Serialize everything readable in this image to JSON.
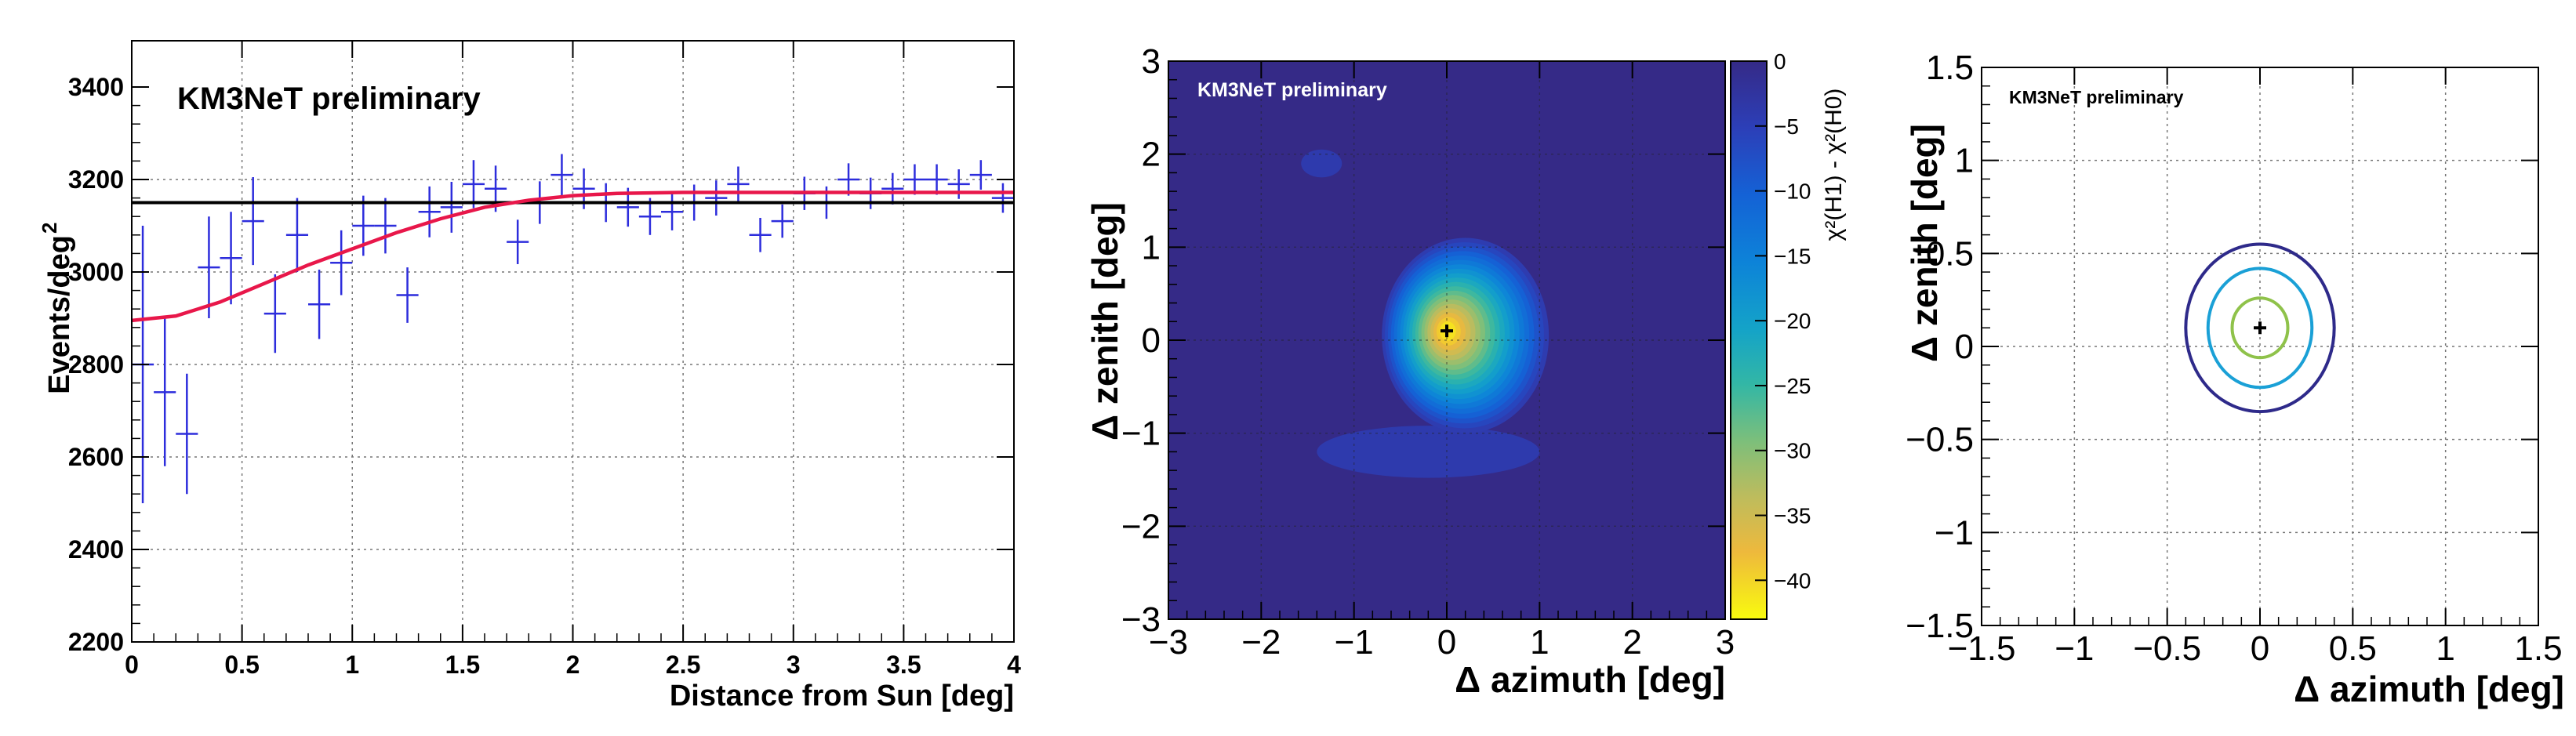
{
  "chart_data": [
    {
      "id": "radial",
      "type": "scatter",
      "label": "KM3NeT preliminary",
      "xlabel": "Distance from Sun [deg]",
      "ylabel": "Events/deg",
      "ylabel_sup": "2",
      "xlim": [
        0,
        4
      ],
      "ylim": [
        2200,
        3500
      ],
      "xticks": [
        0,
        0.5,
        1,
        1.5,
        2,
        2.5,
        3,
        3.5,
        4
      ],
      "xtick_labels": [
        "0",
        "0.5",
        "1",
        "1.5",
        "2",
        "2.5",
        "3",
        "3.5",
        "4"
      ],
      "yticks": [
        2200,
        2400,
        2600,
        2800,
        3000,
        3200,
        3400
      ],
      "ytick_labels": [
        "2200",
        "2400",
        "2600",
        "2800",
        "3000",
        "3200",
        "3400"
      ],
      "bin_half_width": 0.05,
      "points": [
        {
          "x": 0.05,
          "y": 2800,
          "err": 300
        },
        {
          "x": 0.15,
          "y": 2740,
          "err": 160
        },
        {
          "x": 0.25,
          "y": 2650,
          "err": 130
        },
        {
          "x": 0.35,
          "y": 3010,
          "err": 110
        },
        {
          "x": 0.45,
          "y": 3030,
          "err": 100
        },
        {
          "x": 0.55,
          "y": 3110,
          "err": 95
        },
        {
          "x": 0.65,
          "y": 2910,
          "err": 85
        },
        {
          "x": 0.75,
          "y": 3080,
          "err": 80
        },
        {
          "x": 0.85,
          "y": 2930,
          "err": 75
        },
        {
          "x": 0.95,
          "y": 3020,
          "err": 70
        },
        {
          "x": 1.05,
          "y": 3100,
          "err": 65
        },
        {
          "x": 1.15,
          "y": 3100,
          "err": 60
        },
        {
          "x": 1.25,
          "y": 2950,
          "err": 60
        },
        {
          "x": 1.35,
          "y": 3130,
          "err": 55
        },
        {
          "x": 1.45,
          "y": 3140,
          "err": 55
        },
        {
          "x": 1.55,
          "y": 3190,
          "err": 52
        },
        {
          "x": 1.65,
          "y": 3180,
          "err": 50
        },
        {
          "x": 1.75,
          "y": 3065,
          "err": 48
        },
        {
          "x": 1.85,
          "y": 3150,
          "err": 46
        },
        {
          "x": 1.95,
          "y": 3210,
          "err": 45
        },
        {
          "x": 2.05,
          "y": 3180,
          "err": 44
        },
        {
          "x": 2.15,
          "y": 3150,
          "err": 42
        },
        {
          "x": 2.25,
          "y": 3140,
          "err": 42
        },
        {
          "x": 2.35,
          "y": 3120,
          "err": 40
        },
        {
          "x": 2.45,
          "y": 3130,
          "err": 40
        },
        {
          "x": 2.55,
          "y": 3150,
          "err": 39
        },
        {
          "x": 2.65,
          "y": 3160,
          "err": 38
        },
        {
          "x": 2.75,
          "y": 3190,
          "err": 38
        },
        {
          "x": 2.85,
          "y": 3080,
          "err": 37
        },
        {
          "x": 2.95,
          "y": 3110,
          "err": 36
        },
        {
          "x": 3.05,
          "y": 3170,
          "err": 36
        },
        {
          "x": 3.15,
          "y": 3150,
          "err": 35
        },
        {
          "x": 3.25,
          "y": 3200,
          "err": 35
        },
        {
          "x": 3.35,
          "y": 3170,
          "err": 34
        },
        {
          "x": 3.45,
          "y": 3180,
          "err": 34
        },
        {
          "x": 3.55,
          "y": 3200,
          "err": 33
        },
        {
          "x": 3.65,
          "y": 3200,
          "err": 33
        },
        {
          "x": 3.75,
          "y": 3190,
          "err": 32
        },
        {
          "x": 3.85,
          "y": 3210,
          "err": 32
        },
        {
          "x": 3.95,
          "y": 3160,
          "err": 32
        }
      ],
      "background_level": 3150,
      "fit_curve": {
        "x": [
          0,
          0.2,
          0.4,
          0.6,
          0.8,
          1.0,
          1.2,
          1.4,
          1.6,
          1.8,
          2.0,
          2.2,
          2.5,
          3.0,
          3.5,
          4.0
        ],
        "y": [
          2895,
          2905,
          2935,
          2975,
          3015,
          3050,
          3085,
          3115,
          3140,
          3155,
          3165,
          3170,
          3172,
          3172,
          3172,
          3172
        ]
      },
      "colors": {
        "points": "#2d2ddc",
        "fit": "#e8174a",
        "background": "#000000"
      }
    },
    {
      "id": "ts-map",
      "type": "heatmap",
      "label": "KM3NeT preliminary",
      "xlabel": "Δ azimuth [deg]",
      "ylabel": "Δ zenith [deg]",
      "xlim": [
        -3,
        3
      ],
      "ylim": [
        -3,
        3
      ],
      "xticks": [
        -3,
        -2,
        -1,
        0,
        1,
        2,
        3
      ],
      "xtick_labels": [
        "−3",
        "−2",
        "−1",
        "0",
        "1",
        "2",
        "3"
      ],
      "yticks": [
        -3,
        -2,
        -1,
        0,
        1,
        2,
        3
      ],
      "ytick_labels": [
        "−3",
        "−2",
        "−1",
        "0",
        "1",
        "2",
        "3"
      ],
      "colorbar_title": "χ²(H1) - χ²(H0)",
      "colorbar_range": [
        -43,
        0
      ],
      "colorbar_ticks": [
        0,
        -5,
        -10,
        -15,
        -20,
        -25,
        -30,
        -35,
        -40
      ],
      "colorbar_tick_labels": [
        "0",
        "−5",
        "−10",
        "−15",
        "−20",
        "−25",
        "−30",
        "−35",
        "−40"
      ],
      "best_fit": {
        "x": 0.0,
        "y": 0.1
      },
      "minimum": -43,
      "main_blob": {
        "cx": 0.2,
        "cy": 0.05,
        "sx": 0.9,
        "sy": 1.05
      },
      "tail_blob": {
        "cx": -0.2,
        "cy": -1.2,
        "sx": 1.2,
        "sy": 0.28,
        "depth": -4
      },
      "spot_blob": {
        "cx": -1.35,
        "cy": 1.9,
        "sx": 0.22,
        "sy": 0.15,
        "depth": -4
      }
    },
    {
      "id": "contours",
      "type": "line",
      "label": "KM3NeT preliminary",
      "xlabel": "Δ azimuth [deg]",
      "ylabel": "Δ zenith [deg]",
      "xlim": [
        -1.5,
        1.5
      ],
      "ylim": [
        -1.5,
        1.5
      ],
      "xticks": [
        -1.5,
        -1,
        -0.5,
        0,
        0.5,
        1,
        1.5
      ],
      "xtick_labels": [
        "−1.5",
        "−1",
        "−0.5",
        "0",
        "0.5",
        "1",
        "1.5"
      ],
      "yticks": [
        -1.5,
        -1,
        -0.5,
        0,
        0.5,
        1,
        1.5
      ],
      "ytick_labels": [
        "−1.5",
        "−1",
        "−0.5",
        "0",
        "0.5",
        "1",
        "1.5"
      ],
      "best_fit": {
        "x": 0.0,
        "y": 0.1
      },
      "contours": [
        {
          "cx": 0.0,
          "cy": 0.1,
          "rx": 0.4,
          "ry": 0.45,
          "color": "#2e2a8a"
        },
        {
          "cx": 0.0,
          "cy": 0.1,
          "rx": 0.28,
          "ry": 0.32,
          "color": "#1aa0d6"
        },
        {
          "cx": 0.0,
          "cy": 0.1,
          "rx": 0.15,
          "ry": 0.16,
          "color": "#8fc24a"
        }
      ]
    }
  ]
}
